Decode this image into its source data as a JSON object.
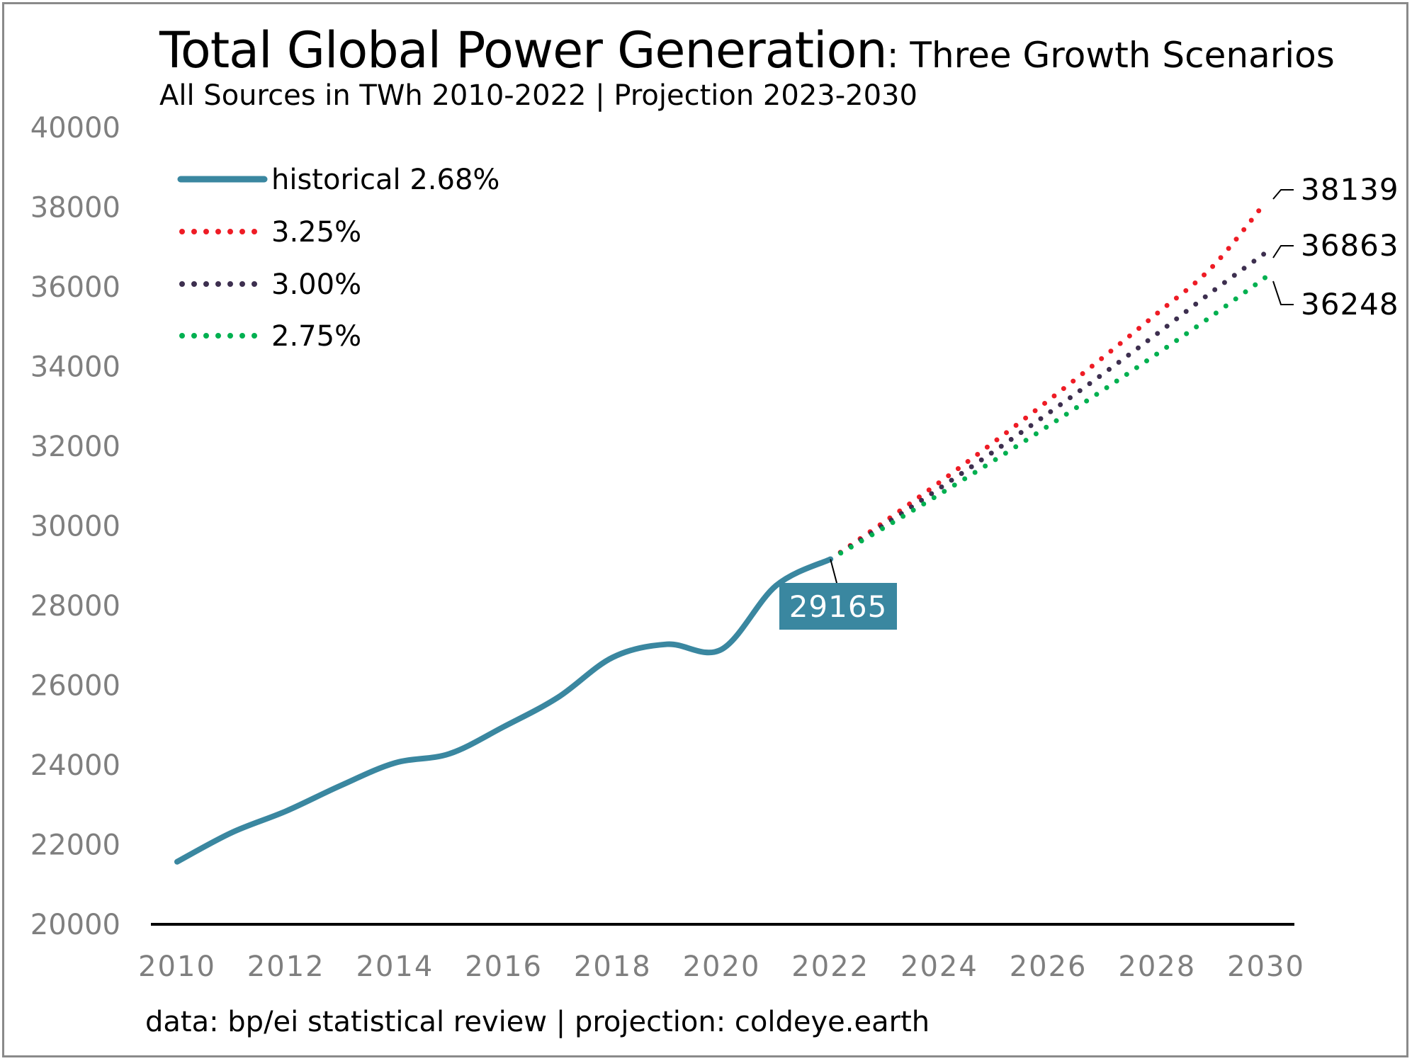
{
  "title": {
    "main": "Total Global Power Generation",
    "sub": ": Three Growth Scenarios"
  },
  "subtitle": "All Sources in TWh 2010-2022 | Projection 2023-2030",
  "footer": "data: bp/ei statistical review | projection: coldeye.earth",
  "colors": {
    "historical": "#3A87A0",
    "p325": "#EE1C25",
    "p300": "#3D2F4F",
    "p275": "#00B050",
    "axis_text": "#7F7F7F",
    "axis_line": "#000000",
    "frame": "#8A8A8A"
  },
  "chart_data": {
    "type": "line",
    "title": "Total Global Power Generation: Three Growth Scenarios",
    "subtitle": "All Sources in TWh 2010-2022 | Projection 2023-2030",
    "xlim": [
      2010,
      2030
    ],
    "ylim": [
      20000,
      40000
    ],
    "x_ticks": [
      2010,
      2012,
      2014,
      2016,
      2018,
      2020,
      2022,
      2024,
      2026,
      2028,
      2030
    ],
    "y_ticks": [
      20000,
      22000,
      24000,
      26000,
      28000,
      30000,
      32000,
      34000,
      36000,
      38000,
      40000
    ],
    "grid": false,
    "legend_position": "top-left",
    "series": [
      {
        "name": "historical 2.68%",
        "style": "solid",
        "x": [
          2010,
          2011,
          2012,
          2013,
          2014,
          2015,
          2016,
          2017,
          2018,
          2019,
          2020,
          2021,
          2022
        ],
        "y": [
          21570,
          22300,
          22840,
          23480,
          24050,
          24280,
          24960,
          25700,
          26700,
          27030,
          26900,
          28500,
          29165
        ]
      },
      {
        "name": "3.25%",
        "style": "dotted",
        "x": [
          2022,
          2023,
          2024,
          2025,
          2026,
          2027,
          2028,
          2029,
          2030
        ],
        "y": [
          29165,
          30113,
          31092,
          32102,
          33146,
          34223,
          35335,
          36484,
          38139
        ]
      },
      {
        "name": "3.00%",
        "style": "dotted",
        "x": [
          2022,
          2023,
          2024,
          2025,
          2026,
          2027,
          2028,
          2029,
          2030
        ],
        "y": [
          29165,
          30040,
          30941,
          31869,
          32825,
          33810,
          34824,
          35869,
          36863
        ]
      },
      {
        "name": "2.75%",
        "style": "dotted",
        "x": [
          2022,
          2023,
          2024,
          2025,
          2026,
          2027,
          2028,
          2029,
          2030
        ],
        "y": [
          29165,
          29967,
          30791,
          31638,
          32508,
          33402,
          34320,
          35264,
          36248
        ]
      }
    ],
    "annotations": [
      {
        "text": "29165",
        "x": 2022,
        "y": 29165,
        "boxed": true
      },
      {
        "text": "38139",
        "x": 2030,
        "y": 38139
      },
      {
        "text": "36863",
        "x": 2030,
        "y": 36863
      },
      {
        "text": "36248",
        "x": 2030,
        "y": 36248
      }
    ]
  }
}
